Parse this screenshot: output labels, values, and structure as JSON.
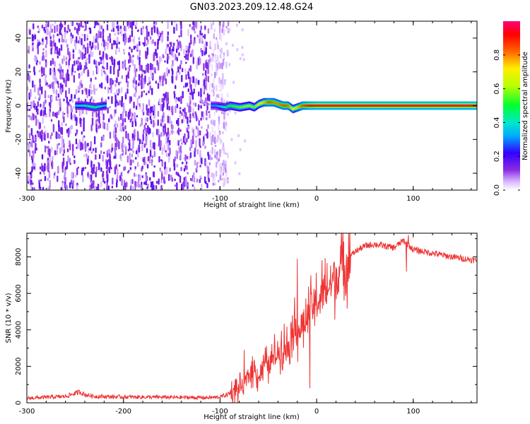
{
  "title": "GN03.2023.209.12.48.G24",
  "chart_data": [
    {
      "type": "heatmap",
      "xlabel": "Height of straight line (km)",
      "ylabel": "Frequency (Hz)",
      "xlim": [
        -300,
        166
      ],
      "ylim": [
        -50,
        50
      ],
      "xticks": [
        -300,
        -200,
        -100,
        0,
        100
      ],
      "yticks": [
        -40,
        -20,
        0,
        20,
        40
      ],
      "colorbar": {
        "label": "Normalized spectral amplitude",
        "range": [
          0,
          1
        ],
        "ticks": [
          "0.0",
          "0.2",
          "0.4",
          "0.6",
          "0.8"
        ],
        "colormap": "white-purple-blue-cyan-green-yellow-red-magenta"
      },
      "noise_region": {
        "x_from": -300,
        "x_to": -100,
        "amplitude": 0.15
      },
      "signal_trace": {
        "x": [
          -250,
          -240,
          -230,
          -220,
          -105,
          -95,
          -90,
          -80,
          -70,
          -65,
          -60,
          -55,
          -50,
          -45,
          -40,
          -35,
          -30,
          -25,
          -20,
          -15,
          -10,
          0,
          50,
          100,
          166
        ],
        "freq_hz": [
          0,
          0,
          -1,
          0,
          0,
          -1,
          0,
          -1,
          0,
          -1,
          1,
          2,
          2,
          2,
          1,
          0,
          0,
          -2,
          -1,
          0,
          0,
          0,
          0,
          0,
          0
        ],
        "amplitude": [
          0.35,
          0.4,
          0.45,
          0.35,
          0.3,
          0.45,
          0.5,
          0.55,
          0.6,
          0.55,
          0.7,
          0.75,
          0.85,
          0.8,
          0.8,
          0.85,
          0.82,
          0.7,
          0.75,
          0.85,
          0.9,
          0.95,
          0.95,
          0.95,
          0.95
        ]
      }
    },
    {
      "type": "line",
      "xlabel": "Height of straight line (km)",
      "ylabel": "SNR (10 * v/v)",
      "xlim": [
        -300,
        166
      ],
      "ylim": [
        0,
        9300
      ],
      "xticks": [
        -300,
        -200,
        -100,
        0,
        100
      ],
      "yticks": [
        0,
        2000,
        4000,
        6000,
        8000
      ],
      "series": [
        {
          "color": "#ee3333",
          "x": [
            -300,
            -280,
            -260,
            -245,
            -240,
            -230,
            -200,
            -150,
            -110,
            -100,
            -90,
            -80,
            -75,
            -70,
            -65,
            -60,
            -55,
            -50,
            -45,
            -40,
            -35,
            -30,
            -25,
            -20,
            -15,
            -10,
            -5,
            0,
            5,
            10,
            20,
            30,
            40,
            50,
            60,
            70,
            80,
            90,
            100,
            110,
            120,
            140,
            166
          ],
          "y": [
            250,
            300,
            350,
            600,
            450,
            350,
            320,
            300,
            280,
            320,
            500,
            800,
            1000,
            1500,
            2000,
            1400,
            2200,
            2000,
            2500,
            2800,
            3200,
            3000,
            4300,
            3800,
            4200,
            4600,
            5200,
            5500,
            5900,
            6200,
            6900,
            7800,
            8300,
            8600,
            8700,
            8600,
            8500,
            8900,
            8400,
            8300,
            8200,
            8000,
            7800
          ]
        }
      ],
      "spikes": [
        {
          "x": -75,
          "y": 2900
        },
        {
          "x": -20,
          "y": 7900
        },
        {
          "x": -7,
          "y": 800
        },
        {
          "x": 95,
          "y": 9200
        },
        {
          "x": 93,
          "y": 7200
        }
      ]
    }
  ]
}
